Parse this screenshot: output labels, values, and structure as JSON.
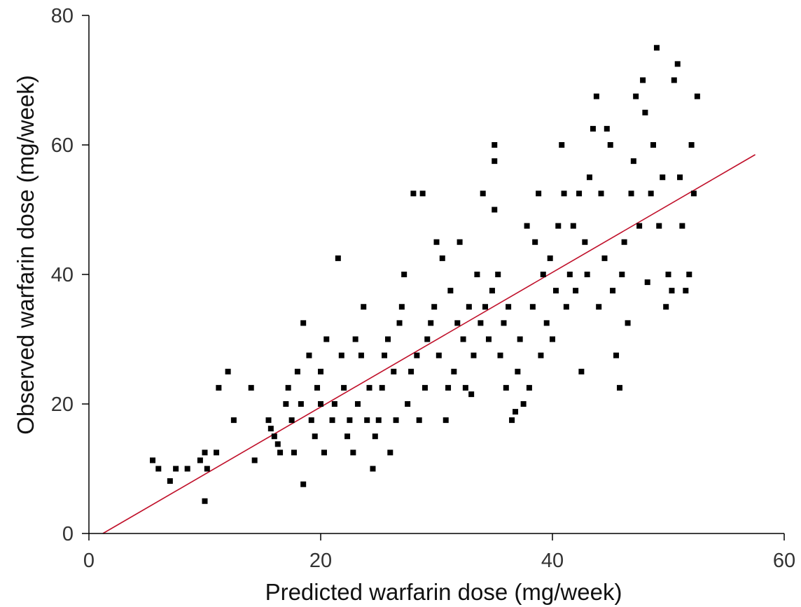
{
  "chart_data": {
    "type": "scatter",
    "title": "",
    "xlabel": "Predicted warfarin dose  (mg/week)",
    "ylabel": "Observed  warfarin dose  (mg/week)",
    "xlim": [
      0,
      60
    ],
    "ylim": [
      0,
      80
    ],
    "xticks": [
      0,
      20,
      40,
      60
    ],
    "yticks": [
      0,
      20,
      40,
      60,
      80
    ],
    "grid": false,
    "legend": "none",
    "point_color": "#000000",
    "fit_line": {
      "color": "#c0102a",
      "x": [
        1.2,
        57.5
      ],
      "y": [
        0,
        58.5
      ]
    },
    "points": [
      [
        5.5,
        11.3
      ],
      [
        6,
        10
      ],
      [
        7,
        8.1
      ],
      [
        7.5,
        10
      ],
      [
        8.5,
        10
      ],
      [
        9.6,
        11.3
      ],
      [
        10,
        12.5
      ],
      [
        10,
        5
      ],
      [
        10.2,
        10
      ],
      [
        11,
        12.5
      ],
      [
        11.2,
        22.5
      ],
      [
        12,
        25
      ],
      [
        12.5,
        17.5
      ],
      [
        14,
        22.5
      ],
      [
        14.3,
        11.3
      ],
      [
        15.5,
        17.5
      ],
      [
        15.7,
        16.2
      ],
      [
        16,
        15
      ],
      [
        16.3,
        13.8
      ],
      [
        16.5,
        12.5
      ],
      [
        17,
        20
      ],
      [
        17.2,
        22.5
      ],
      [
        17.5,
        17.5
      ],
      [
        17.7,
        12.5
      ],
      [
        18,
        25
      ],
      [
        18.3,
        20
      ],
      [
        18.5,
        32.5
      ],
      [
        18.5,
        7.6
      ],
      [
        19,
        27.5
      ],
      [
        19.2,
        17.5
      ],
      [
        19.5,
        15
      ],
      [
        19.7,
        22.5
      ],
      [
        20,
        25
      ],
      [
        20,
        20
      ],
      [
        20.3,
        12.5
      ],
      [
        20.5,
        30
      ],
      [
        21,
        17.5
      ],
      [
        21.2,
        20
      ],
      [
        21.5,
        42.5
      ],
      [
        21.8,
        27.5
      ],
      [
        22,
        22.5
      ],
      [
        22.3,
        15
      ],
      [
        22.5,
        17.5
      ],
      [
        22.8,
        12.5
      ],
      [
        23,
        30
      ],
      [
        23.2,
        20
      ],
      [
        23.5,
        27.5
      ],
      [
        23.7,
        35
      ],
      [
        24,
        17.5
      ],
      [
        24.2,
        22.5
      ],
      [
        24.5,
        10
      ],
      [
        24.7,
        15
      ],
      [
        25,
        17.5
      ],
      [
        25.3,
        22.5
      ],
      [
        25.5,
        27.5
      ],
      [
        25.8,
        30
      ],
      [
        26,
        12.5
      ],
      [
        26.3,
        25
      ],
      [
        26.5,
        17.5
      ],
      [
        26.8,
        32.5
      ],
      [
        27,
        35
      ],
      [
        27.2,
        40
      ],
      [
        27.5,
        20
      ],
      [
        27.8,
        25
      ],
      [
        28,
        52.5
      ],
      [
        28.3,
        27.5
      ],
      [
        28.5,
        17.5
      ],
      [
        28.8,
        52.5
      ],
      [
        29,
        22.5
      ],
      [
        29.2,
        30
      ],
      [
        29.5,
        32.5
      ],
      [
        29.8,
        35
      ],
      [
        30,
        45
      ],
      [
        30.2,
        27.5
      ],
      [
        30.5,
        42.5
      ],
      [
        30.8,
        17.5
      ],
      [
        31,
        22.5
      ],
      [
        31.2,
        37.5
      ],
      [
        31.5,
        25
      ],
      [
        31.8,
        32.5
      ],
      [
        32,
        45
      ],
      [
        32.3,
        30
      ],
      [
        32.5,
        22.5
      ],
      [
        32.8,
        35
      ],
      [
        33,
        21.5
      ],
      [
        33.2,
        27.5
      ],
      [
        33.5,
        40
      ],
      [
        33.8,
        32.5
      ],
      [
        34,
        52.5
      ],
      [
        34.2,
        35
      ],
      [
        34.5,
        30
      ],
      [
        34.8,
        37.5
      ],
      [
        35,
        60
      ],
      [
        35,
        57.5
      ],
      [
        35,
        50
      ],
      [
        35.3,
        40
      ],
      [
        35.5,
        27.5
      ],
      [
        35.8,
        32.5
      ],
      [
        36,
        22.5
      ],
      [
        36.2,
        35
      ],
      [
        36.5,
        17.5
      ],
      [
        36.8,
        18.8
      ],
      [
        37,
        25
      ],
      [
        37.2,
        30
      ],
      [
        37.5,
        20
      ],
      [
        37.8,
        47.5
      ],
      [
        38,
        22.5
      ],
      [
        38.3,
        35
      ],
      [
        38.5,
        45
      ],
      [
        38.8,
        52.5
      ],
      [
        39,
        27.5
      ],
      [
        39.2,
        40
      ],
      [
        39.5,
        32.5
      ],
      [
        39.8,
        42.5
      ],
      [
        40,
        30
      ],
      [
        40.3,
        37.5
      ],
      [
        40.5,
        47.5
      ],
      [
        40.8,
        60
      ],
      [
        41,
        52.5
      ],
      [
        41.2,
        35
      ],
      [
        41.5,
        40
      ],
      [
        41.8,
        47.5
      ],
      [
        42,
        37.5
      ],
      [
        42.3,
        52.5
      ],
      [
        42.5,
        25
      ],
      [
        42.8,
        45
      ],
      [
        43,
        40
      ],
      [
        43.2,
        55
      ],
      [
        43.5,
        62.5
      ],
      [
        43.8,
        67.5
      ],
      [
        44,
        35
      ],
      [
        44.2,
        52.5
      ],
      [
        44.5,
        42.5
      ],
      [
        44.7,
        62.5
      ],
      [
        45,
        60
      ],
      [
        45.2,
        37.5
      ],
      [
        45.5,
        27.5
      ],
      [
        45.8,
        22.5
      ],
      [
        46,
        40
      ],
      [
        46.2,
        45
      ],
      [
        46.5,
        32.5
      ],
      [
        46.8,
        52.5
      ],
      [
        47,
        57.5
      ],
      [
        47.2,
        67.5
      ],
      [
        47.5,
        47.5
      ],
      [
        47.8,
        70
      ],
      [
        48,
        65
      ],
      [
        48.2,
        38.8
      ],
      [
        48.5,
        52.5
      ],
      [
        48.7,
        60
      ],
      [
        49,
        75
      ],
      [
        49.2,
        47.5
      ],
      [
        49.5,
        55
      ],
      [
        49.8,
        35
      ],
      [
        50,
        40
      ],
      [
        50.3,
        37.5
      ],
      [
        50.5,
        70
      ],
      [
        50.8,
        72.5
      ],
      [
        51,
        55
      ],
      [
        51.2,
        47.5
      ],
      [
        51.5,
        37.5
      ],
      [
        51.8,
        40
      ],
      [
        52,
        60
      ],
      [
        52.2,
        52.5
      ],
      [
        52.5,
        67.5
      ]
    ]
  }
}
